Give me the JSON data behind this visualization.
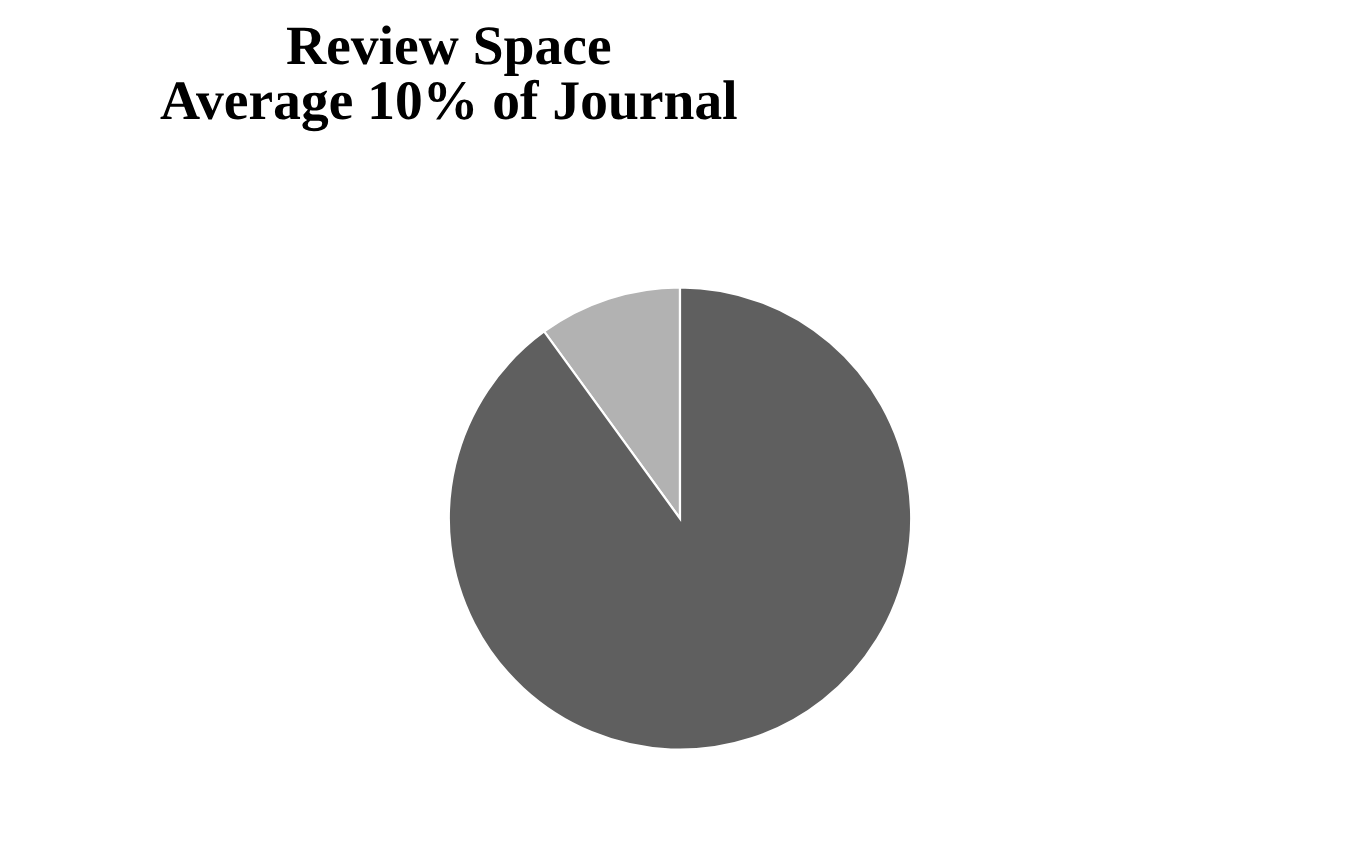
{
  "chart_data": {
    "type": "pie",
    "title": "Review Space\nAverage 10% of Journal",
    "categories": [
      null,
      null
    ],
    "values": [
      10,
      90
    ],
    "colors": [
      "#b2b2b2",
      "#5f5f5f"
    ]
  }
}
